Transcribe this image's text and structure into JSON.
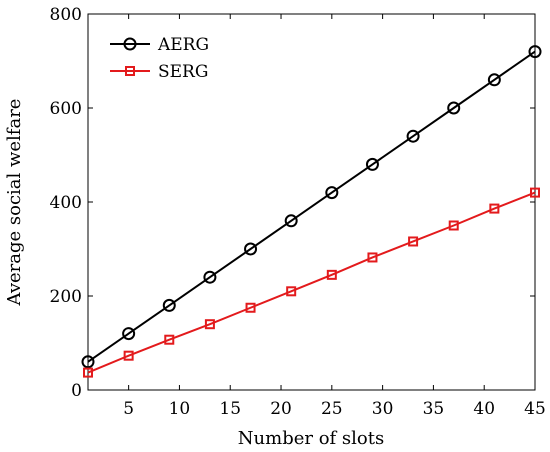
{
  "chart_data": {
    "type": "line",
    "title": "",
    "xlabel": "Number of slots",
    "ylabel": "Average social welfare",
    "xlim": [
      1,
      45
    ],
    "ylim": [
      0,
      800
    ],
    "xticks": [
      5,
      10,
      15,
      20,
      25,
      30,
      35,
      40,
      45
    ],
    "yticks": [
      0,
      200,
      400,
      600,
      800
    ],
    "grid": false,
    "legend_position": "top-left",
    "x": [
      1,
      5,
      9,
      13,
      17,
      21,
      25,
      29,
      33,
      37,
      41,
      45
    ],
    "series": [
      {
        "name": "AERG",
        "color": "#000000",
        "marker": "circle",
        "values": [
          60,
          120,
          180,
          240,
          300,
          360,
          420,
          480,
          540,
          600,
          660,
          720
        ]
      },
      {
        "name": "SERG",
        "color": "#e31a1c",
        "marker": "square",
        "values": [
          37,
          73,
          107,
          140,
          175,
          210,
          245,
          282,
          316,
          350,
          386,
          420
        ]
      }
    ]
  }
}
